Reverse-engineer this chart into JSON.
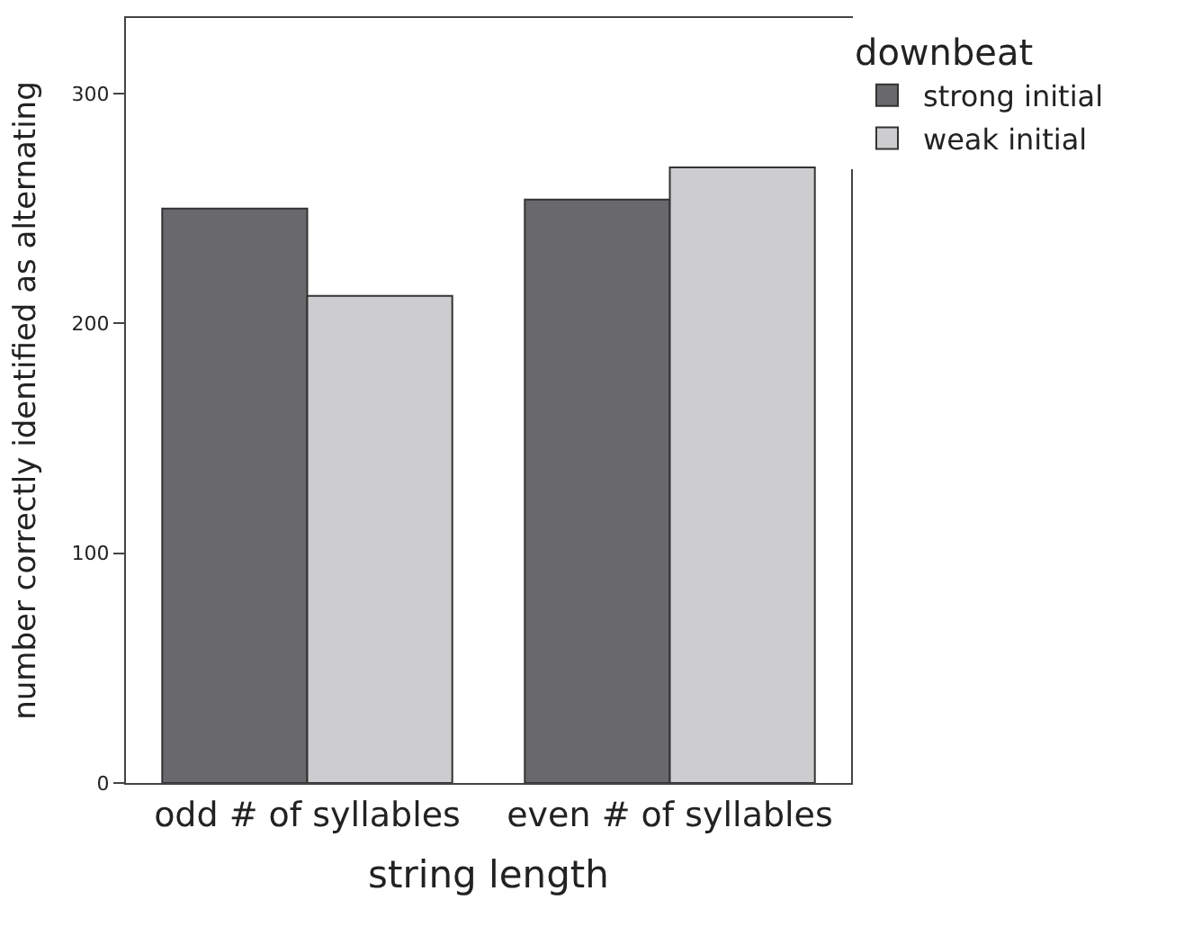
{
  "chart_data": {
    "type": "bar",
    "xlabel": "string length",
    "ylabel": "number correctly identified as alternating",
    "legend_title": "downbeat",
    "categories": [
      "odd # of syllables",
      "even # of syllables"
    ],
    "series": [
      {
        "name": "strong initial",
        "color": "#69696d",
        "values": [
          250,
          254
        ]
      },
      {
        "name": "weak initial",
        "color": "#cdcdcf",
        "values": [
          212,
          268
        ]
      }
    ],
    "ylim": [
      0,
      333
    ],
    "yticks": [
      0,
      100,
      200,
      300
    ],
    "legend": "top right"
  }
}
